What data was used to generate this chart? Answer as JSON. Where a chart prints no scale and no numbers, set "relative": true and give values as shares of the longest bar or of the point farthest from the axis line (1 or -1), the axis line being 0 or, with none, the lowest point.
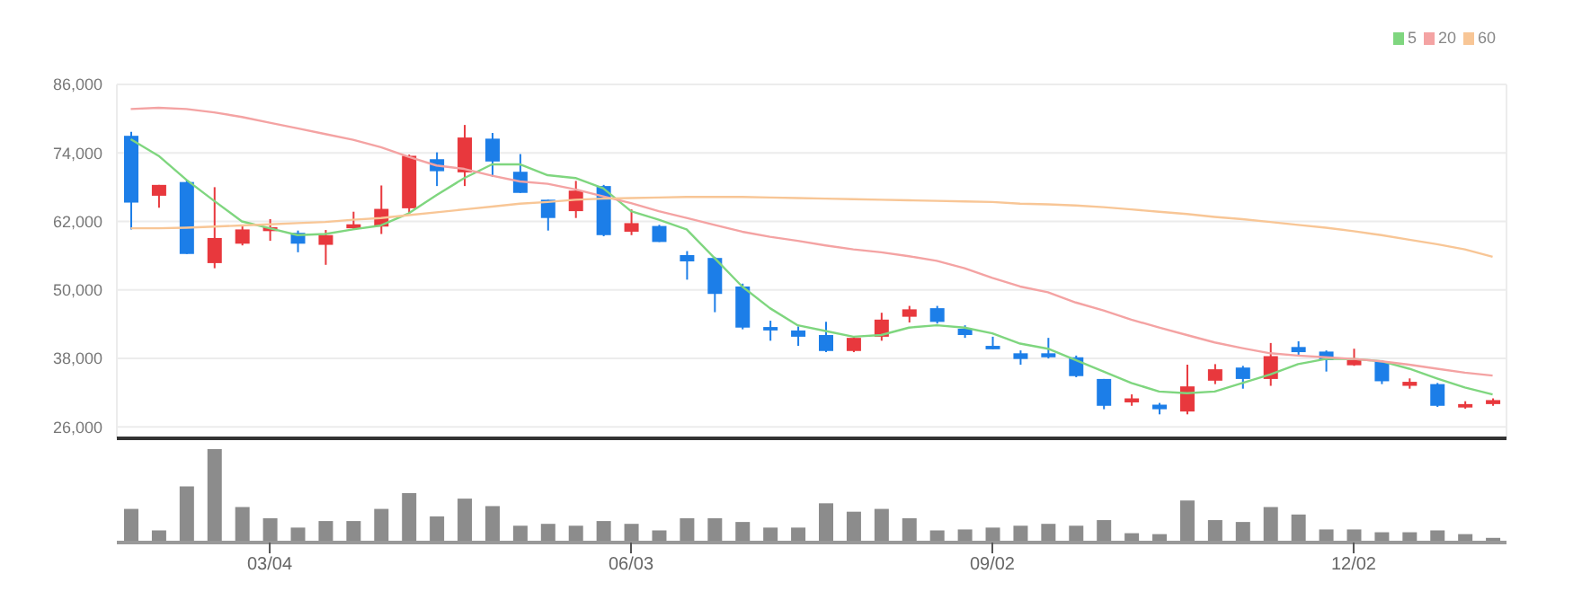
{
  "chart_data": [
    {
      "type": "candlestick",
      "categories": [
        null,
        null,
        null,
        null,
        null,
        null,
        null,
        null,
        null,
        null,
        null,
        null,
        null,
        null,
        null,
        null,
        null,
        null,
        null,
        null,
        null,
        null,
        null,
        null,
        null,
        null,
        null,
        null,
        null,
        null,
        null,
        null,
        null,
        null,
        null,
        null,
        null,
        null,
        null,
        null,
        null,
        null,
        null,
        null,
        null,
        null,
        null,
        null,
        null,
        null
      ],
      "ohlc": [
        [
          77000,
          77700,
          60600,
          65300
        ],
        [
          66500,
          68400,
          64400,
          68400
        ],
        [
          68900,
          69300,
          56300,
          56300
        ],
        [
          54700,
          68000,
          53800,
          59100
        ],
        [
          58100,
          61200,
          57800,
          60600
        ],
        [
          60300,
          62400,
          58600,
          61000
        ],
        [
          60000,
          60400,
          56600,
          58100
        ],
        [
          57900,
          60500,
          54400,
          59600
        ],
        [
          60800,
          63700,
          60600,
          61500
        ],
        [
          61100,
          68300,
          59800,
          64200
        ],
        [
          64300,
          73700,
          63400,
          73500
        ],
        [
          72900,
          74100,
          68200,
          70800
        ],
        [
          70600,
          78900,
          68200,
          76700
        ],
        [
          76500,
          77500,
          69800,
          72500
        ],
        [
          70700,
          73800,
          67000,
          67000
        ],
        [
          65800,
          65800,
          60400,
          62600
        ],
        [
          63800,
          69100,
          62600,
          67400
        ],
        [
          68200,
          68400,
          59400,
          59600
        ],
        [
          60200,
          64100,
          59600,
          61700
        ],
        [
          61200,
          61400,
          58400,
          58400
        ],
        [
          56100,
          56800,
          51800,
          55000
        ],
        [
          55600,
          55800,
          46100,
          49300
        ],
        [
          50600,
          51100,
          43100,
          43400
        ],
        [
          43500,
          44600,
          41100,
          42900
        ],
        [
          42900,
          43600,
          40200,
          41800
        ],
        [
          42100,
          44400,
          39100,
          39300
        ],
        [
          39300,
          41800,
          39100,
          41600
        ],
        [
          41800,
          46000,
          41100,
          44800
        ],
        [
          45300,
          47200,
          44300,
          46600
        ],
        [
          46800,
          47200,
          44100,
          44400
        ],
        [
          43200,
          43800,
          41600,
          42100
        ],
        [
          40200,
          41800,
          39600,
          39600
        ],
        [
          38900,
          39400,
          36900,
          37900
        ],
        [
          38900,
          41600,
          38000,
          38200
        ],
        [
          38200,
          38500,
          34700,
          34900
        ],
        [
          34400,
          34400,
          29100,
          29700
        ],
        [
          30300,
          31700,
          29700,
          31000
        ],
        [
          29900,
          30200,
          28200,
          29100
        ],
        [
          28700,
          36900,
          28200,
          33100
        ],
        [
          34100,
          37000,
          33500,
          36100
        ],
        [
          36400,
          36700,
          32700,
          34400
        ],
        [
          34400,
          40700,
          33200,
          38400
        ],
        [
          40000,
          41000,
          38500,
          39100
        ],
        [
          39200,
          39400,
          35700,
          37700
        ],
        [
          36800,
          39700,
          36700,
          37700
        ],
        [
          37500,
          37700,
          33500,
          34000
        ],
        [
          33200,
          34500,
          32700,
          33900
        ],
        [
          33500,
          33700,
          29500,
          29700
        ],
        [
          29400,
          30500,
          29200,
          30000
        ],
        [
          30000,
          31000,
          29700,
          30700
        ]
      ],
      "colors": [
        "#1c7ee8",
        "#e8383d",
        "#1c7ee8",
        "#e8383d",
        "#e8383d",
        "#e8383d",
        "#1c7ee8",
        "#e8383d",
        "#e8383d",
        "#e8383d",
        "#e8383d",
        "#1c7ee8",
        "#e8383d",
        "#1c7ee8",
        "#1c7ee8",
        "#1c7ee8",
        "#e8383d",
        "#1c7ee8",
        "#e8383d",
        "#1c7ee8",
        "#1c7ee8",
        "#1c7ee8",
        "#1c7ee8",
        "#1c7ee8",
        "#1c7ee8",
        "#1c7ee8",
        "#e8383d",
        "#e8383d",
        "#e8383d",
        "#1c7ee8",
        "#1c7ee8",
        "#1c7ee8",
        "#1c7ee8",
        "#1c7ee8",
        "#1c7ee8",
        "#1c7ee8",
        "#e8383d",
        "#1c7ee8",
        "#e8383d",
        "#e8383d",
        "#1c7ee8",
        "#e8383d",
        "#1c7ee8",
        "#1c7ee8",
        "#e8383d",
        "#1c7ee8",
        "#e8383d",
        "#1c7ee8",
        "#e8383d",
        "#e8383d"
      ],
      "series": [
        {
          "type": "line",
          "name": "5",
          "color": "#7fd67f",
          "values": [
            76400,
            73500,
            69300,
            65600,
            62000,
            60800,
            59600,
            59800,
            60600,
            61300,
            63400,
            66600,
            69600,
            72000,
            72000,
            70100,
            69600,
            67800,
            63800,
            62300,
            60600,
            55600,
            50600,
            46800,
            43800,
            42800,
            41800,
            42100,
            43400,
            43800,
            43400,
            42400,
            40600,
            39700,
            37700,
            35700,
            33700,
            32200,
            31900,
            32200,
            33700,
            35200,
            37000,
            37900,
            37900,
            37500,
            36200,
            34500,
            32900,
            31700
          ]
        },
        {
          "type": "line",
          "name": "20",
          "color": "#f4a3a3",
          "values": [
            81700,
            81900,
            81700,
            81100,
            80300,
            79300,
            78300,
            77300,
            76300,
            75000,
            73300,
            71800,
            71200,
            70000,
            69000,
            68600,
            67600,
            66400,
            65200,
            63800,
            62600,
            61400,
            60200,
            59300,
            58600,
            57800,
            57100,
            56600,
            55900,
            55100,
            53800,
            52100,
            50600,
            49600,
            47800,
            46400,
            44800,
            43400,
            42100,
            40800,
            39800,
            38900,
            38500,
            38200,
            37900,
            37500,
            36900,
            36200,
            35500,
            35000
          ]
        },
        {
          "type": "line",
          "name": "60",
          "color": "#f8c696",
          "values": [
            60800,
            60800,
            60900,
            61100,
            61300,
            61500,
            61700,
            61900,
            62300,
            62600,
            63100,
            63600,
            64100,
            64600,
            65100,
            65400,
            65800,
            66000,
            66100,
            66200,
            66300,
            66300,
            66300,
            66200,
            66100,
            66000,
            65900,
            65800,
            65700,
            65600,
            65500,
            65400,
            65100,
            65000,
            64800,
            64500,
            64100,
            63700,
            63300,
            62800,
            62400,
            61900,
            61400,
            60900,
            60300,
            59600,
            58800,
            58000,
            57100,
            55800
          ]
        }
      ],
      "ylim": [
        24000,
        86000
      ],
      "yticks": [
        {
          "value": 26000,
          "label": "26,000"
        },
        {
          "value": 38000,
          "label": "38,000"
        },
        {
          "value": 50000,
          "label": "50,000"
        },
        {
          "value": 62000,
          "label": "62,000"
        },
        {
          "value": 74000,
          "label": "74,000"
        },
        {
          "value": 86000,
          "label": "86,000"
        }
      ],
      "grid": true,
      "legend": "top right",
      "tick_labels": "y"
    },
    {
      "type": "bar",
      "relative": true,
      "color": "#8c8c8c",
      "tick_labels": "x",
      "categories": [
        null,
        null,
        null,
        null,
        null,
        "03/04",
        null,
        null,
        null,
        null,
        null,
        null,
        null,
        null,
        null,
        null,
        null,
        null,
        "06/03",
        null,
        null,
        null,
        null,
        null,
        null,
        null,
        null,
        null,
        null,
        null,
        null,
        "09/02",
        null,
        null,
        null,
        null,
        null,
        null,
        null,
        null,
        null,
        null,
        null,
        null,
        "12/02",
        null,
        null,
        null,
        null,
        null
      ],
      "values": [
        0.36,
        0.13,
        0.6,
        1,
        0.38,
        0.26,
        0.16,
        0.23,
        0.23,
        0.36,
        0.53,
        0.28,
        0.47,
        0.39,
        0.18,
        0.2,
        0.18,
        0.23,
        0.2,
        0.13,
        0.26,
        0.26,
        0.22,
        0.16,
        0.16,
        0.42,
        0.33,
        0.36,
        0.26,
        0.13,
        0.14,
        0.16,
        0.18,
        0.2,
        0.18,
        0.24,
        0.1,
        0.09,
        0.45,
        0.24,
        0.22,
        0.38,
        0.3,
        0.14,
        0.14,
        0.11,
        0.11,
        0.13,
        0.09,
        0.05
      ]
    }
  ]
}
